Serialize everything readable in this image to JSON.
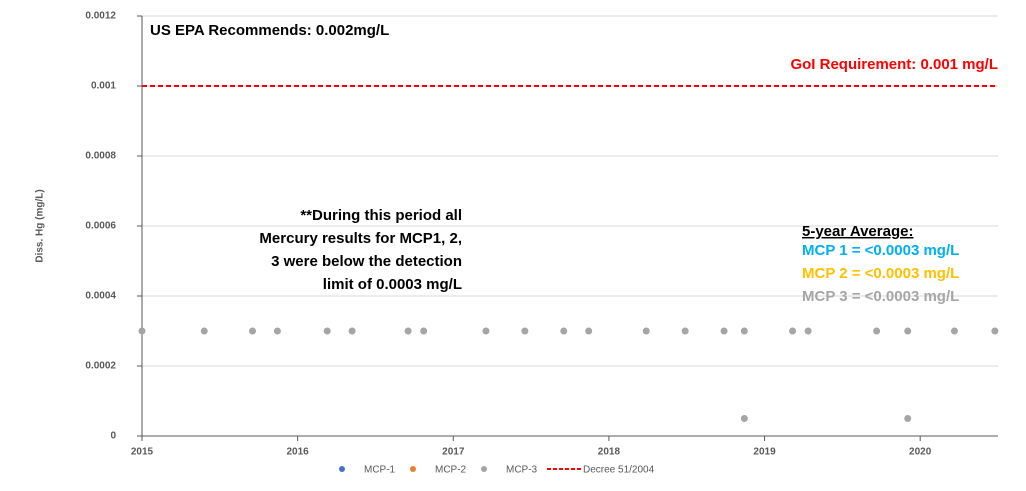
{
  "chart_data": {
    "type": "scatter",
    "ylabel": "Diss. Hg (mg/L)",
    "xlim": [
      2015,
      2020.5
    ],
    "xticks": [
      2015,
      2016,
      2017,
      2018,
      2019,
      2020
    ],
    "ylim": [
      0,
      0.0012
    ],
    "yticks": [
      0,
      0.0002,
      0.0004,
      0.0006,
      0.0008,
      0.001,
      0.0012
    ],
    "grid": true,
    "series": [
      {
        "name": "MCP-1",
        "color": "#4472c4",
        "x": [],
        "values": []
      },
      {
        "name": "MCP-2",
        "color": "#ed7d31",
        "x": [],
        "values": []
      },
      {
        "name": "MCP-3",
        "color": "#a5a5a5",
        "x": [
          2015.0,
          2015.4,
          2015.71,
          2015.87,
          2016.19,
          2016.35,
          2016.71,
          2016.81,
          2017.21,
          2017.46,
          2017.71,
          2017.87,
          2018.24,
          2018.49,
          2018.74,
          2018.87,
          2018.87,
          2019.18,
          2019.28,
          2019.72,
          2019.92,
          2019.92,
          2020.22,
          2020.48
        ],
        "values": [
          0.0003,
          0.0003,
          0.0003,
          0.0003,
          0.0003,
          0.0003,
          0.0003,
          0.0003,
          0.0003,
          0.0003,
          0.0003,
          0.0003,
          0.0003,
          0.0003,
          0.0003,
          0.0003,
          5e-05,
          0.0003,
          0.0003,
          0.0003,
          0.0003,
          5e-05,
          0.0003,
          0.0003
        ]
      }
    ],
    "reference_line": {
      "name": "Decree 51/2004",
      "value": 0.001,
      "color": "#ff0000"
    },
    "annotations": {
      "epa": "US EPA Recommends: 0.002mg/L",
      "goi": "GoI Requirement: 0.001 mg/L",
      "note": [
        "**During this period all",
        "Mercury results for MCP1, 2,",
        "3 were below the detection",
        "limit of 0.0003 mg/L"
      ],
      "average_title": "5-year Average:",
      "averages": [
        {
          "text": "MCP 1 = <0.0003 mg/L",
          "color": "#00b0f0"
        },
        {
          "text": "MCP 2 = <0.0003 mg/L",
          "color": "#ffc000"
        },
        {
          "text": "MCP 3 = <0.0003 mg/L",
          "color": "#a6a6a6"
        }
      ]
    }
  }
}
